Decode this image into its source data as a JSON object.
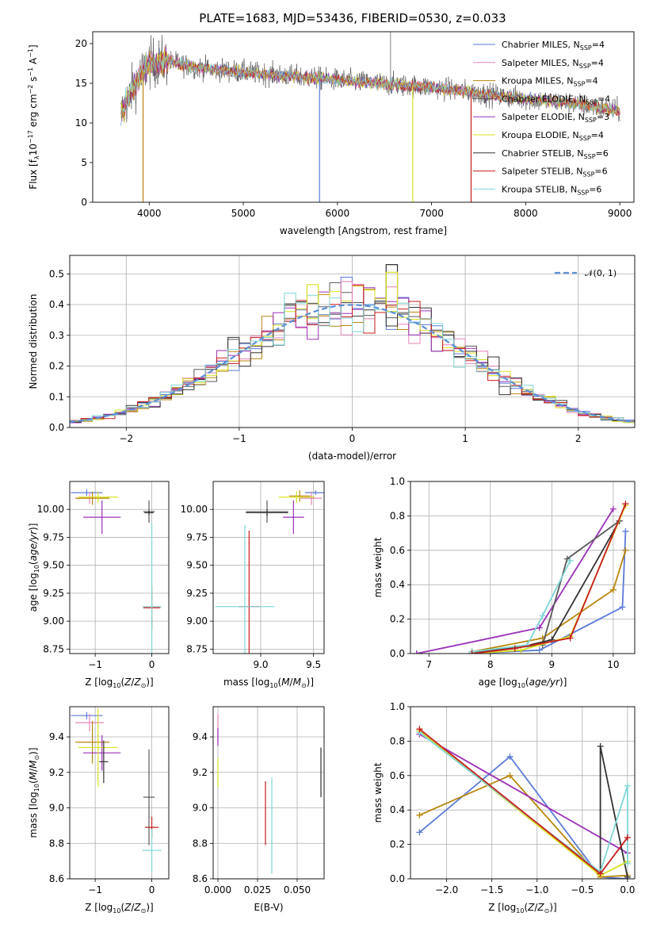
{
  "figure": {
    "title": "PLATE=1683, MJD=53436, FIBERID=0530, z=0.033",
    "series": [
      {
        "name": "Chabrier MILES, N_SSP=4",
        "legend_main": "Chabrier MILES, N",
        "legend_sub": "SSP",
        "legend_tail": "=4",
        "color": "#5b7bd8"
      },
      {
        "name": "Salpeter MILES, N_SSP=4",
        "legend_main": "Salpeter MILES, N",
        "legend_sub": "SSP",
        "legend_tail": "=4",
        "color": "#e384b7"
      },
      {
        "name": "Kroupa MILES, N_SSP=4",
        "legend_main": "Kroupa MILES, N",
        "legend_sub": "SSP",
        "legend_tail": "=4",
        "color": "#b8860b"
      },
      {
        "name": "Chabrier ELODIE, N_SSP=4",
        "legend_main": "Chabrier ELODIE, N",
        "legend_sub": "SSP",
        "legend_tail": "=4",
        "color": "#5a5a5a"
      },
      {
        "name": "Salpeter ELODIE, N_SSP=3",
        "legend_main": "Salpeter ELODIE, N",
        "legend_sub": "SSP",
        "legend_tail": "=3",
        "color": "#9b30b8"
      },
      {
        "name": "Kroupa ELODIE, N_SSP=4",
        "legend_main": "Kroupa ELODIE, N",
        "legend_sub": "SSP",
        "legend_tail": "=4",
        "color": "#d9e021"
      },
      {
        "name": "Chabrier STELIB, N_SSP=6",
        "legend_main": "Chabrier STELIB, N",
        "legend_sub": "SSP",
        "legend_tail": "=6",
        "color": "#333333"
      },
      {
        "name": "Salpeter STELIB, N_SSP=6",
        "legend_main": "Salpeter STELIB, N",
        "legend_sub": "SSP",
        "legend_tail": "=6",
        "color": "#c81d1d"
      },
      {
        "name": "Kroupa STELIB, N_SSP=6",
        "legend_main": "Kroupa STELIB, N",
        "legend_sub": "SSP",
        "legend_tail": "=6",
        "color": "#7fd6d6"
      }
    ]
  },
  "chart_data": [
    {
      "id": "spectrum",
      "type": "line",
      "xlabel": "wavelength [Angstrom, rest frame]",
      "ylabel_main": "Flux [f",
      "ylabel_lambda": "λ",
      "ylabel_rest": "10",
      "ylabel_exp1": "−17",
      "ylabel_unit": " erg cm",
      "ylabel_exp2": "−2",
      "ylabel_s": " s",
      "ylabel_exp3": "−1",
      "ylabel_A": " A",
      "ylabel_exp4": "−1",
      "ylabel_close": "]",
      "xlim": [
        3400,
        9150
      ],
      "ylim": [
        0,
        21.5
      ],
      "xticks": [
        4000,
        5000,
        6000,
        7000,
        8000,
        9000
      ],
      "yticks": [
        0,
        5,
        10,
        15,
        20
      ],
      "grid": false,
      "legend": "upper right",
      "wavelength_range": [
        3700,
        9000
      ],
      "continuum": [
        [
          3700,
          11.0
        ],
        [
          3850,
          15.0
        ],
        [
          4000,
          17.5
        ],
        [
          4200,
          17.8
        ],
        [
          4500,
          17.0
        ],
        [
          5000,
          16.4
        ],
        [
          5500,
          15.9
        ],
        [
          6000,
          15.4
        ],
        [
          6500,
          14.9
        ],
        [
          7000,
          14.5
        ],
        [
          7400,
          13.9
        ],
        [
          8000,
          13.0
        ],
        [
          8500,
          12.5
        ],
        [
          9000,
          11.5
        ]
      ],
      "features": [
        {
          "series_index": 0,
          "x": 5810,
          "y": 0
        },
        {
          "series_index": 7,
          "x": 7420,
          "y": 0
        },
        {
          "series_index": 2,
          "x": 3935,
          "y": 0
        },
        {
          "series_index": 5,
          "x": 6800,
          "y": 0
        }
      ]
    },
    {
      "id": "residuals",
      "type": "histogram",
      "xlabel": "(data-model)/error",
      "ylabel": "Normed distribution",
      "xlim": [
        -2.5,
        2.5
      ],
      "ylim": [
        0,
        0.56
      ],
      "xticks": [
        -2,
        -1,
        0,
        1,
        2
      ],
      "yticks": [
        0.0,
        0.1,
        0.2,
        0.3,
        0.4,
        0.5
      ],
      "grid": true,
      "legend": "upper right",
      "reference_label": "𝒩(0, 1)",
      "reference_color": "#5b8fd9",
      "bin_width": 0.1,
      "bin_start": -2.5,
      "envelope_peak_bins": [
        {
          "x": -0.35,
          "y": 0.465
        },
        {
          "x": -0.05,
          "y": 0.475
        },
        {
          "x": 0.35,
          "y": 0.53
        },
        {
          "x": 0.35,
          "y": 0.505
        }
      ]
    },
    {
      "id": "age_vs_Z",
      "type": "errorbar",
      "xlabel": "Z [log10(Z/Z⊙)]",
      "ylabel": "age  [log10(age/yr)]",
      "xlim": [
        -1.45,
        0.3
      ],
      "ylim": [
        8.71,
        10.25
      ],
      "xticks": [
        -1,
        0
      ],
      "yticks": [
        8.75,
        9.0,
        9.25,
        9.5,
        9.75,
        10.0
      ],
      "grid": true,
      "points": [
        {
          "series_index": 0,
          "x": -1.15,
          "y": 10.15,
          "xerr": 0.28,
          "yerr": 0.03
        },
        {
          "series_index": 1,
          "x": -1.1,
          "y": 10.1,
          "xerr": 0.25,
          "yerr": 0.05
        },
        {
          "series_index": 2,
          "x": -1.05,
          "y": 10.1,
          "xerr": 0.3,
          "yerr": 0.06
        },
        {
          "series_index": 3,
          "x": -0.05,
          "y": 9.98,
          "xerr": 0.1,
          "yerr": 0.1
        },
        {
          "series_index": 4,
          "x": -0.88,
          "y": 9.93,
          "xerr": 0.33,
          "yerr": 0.15
        },
        {
          "series_index": 5,
          "x": -0.95,
          "y": 10.11,
          "xerr": 0.35,
          "yerr": 0.05
        },
        {
          "series_index": 6,
          "x": -0.05,
          "y": 9.97,
          "xerr": 0.08,
          "yerr": 0.02
        },
        {
          "series_index": 7,
          "x": 0.0,
          "y": 9.12,
          "xerr": 0.15,
          "yerr": 0.2
        },
        {
          "series_index": 8,
          "x": 0.0,
          "y": 9.13,
          "xerr": 0.17,
          "yerr": 0.75
        }
      ]
    },
    {
      "id": "age_vs_mass",
      "type": "errorbar",
      "xlabel": "mass [log10(M/M⊙)]",
      "ylabel": "",
      "xlim": [
        8.55,
        9.6
      ],
      "ylim": [
        8.71,
        10.25
      ],
      "xticks": [
        9.0,
        9.5
      ],
      "yticks": [
        8.75,
        9.0,
        9.25,
        9.5,
        9.75,
        10.0
      ],
      "grid": true,
      "points": [
        {
          "series_index": 0,
          "x": 9.52,
          "y": 10.15,
          "xerr": 0.1,
          "yerr": 0.02
        },
        {
          "series_index": 1,
          "x": 9.48,
          "y": 10.1,
          "xerr": 0.1,
          "yerr": 0.06
        },
        {
          "series_index": 2,
          "x": 9.37,
          "y": 10.12,
          "xerr": 0.1,
          "yerr": 0.05
        },
        {
          "series_index": 3,
          "x": 9.06,
          "y": 9.98,
          "xerr": 0.2,
          "yerr": 0.1
        },
        {
          "series_index": 4,
          "x": 9.31,
          "y": 9.93,
          "xerr": 0.1,
          "yerr": 0.15
        },
        {
          "series_index": 5,
          "x": 9.34,
          "y": 10.11,
          "xerr": 0.17,
          "yerr": 0.05
        },
        {
          "series_index": 6,
          "x": 9.06,
          "y": 9.97,
          "xerr": 0.2,
          "yerr": 0.03
        },
        {
          "series_index": 7,
          "x": 8.89,
          "y": 9.13,
          "xerr": 0.1,
          "yerr": 0.68
        },
        {
          "series_index": 8,
          "x": 8.85,
          "y": 9.13,
          "xerr": 0.28,
          "yerr": 0.73
        }
      ]
    },
    {
      "id": "weight_vs_age",
      "type": "line",
      "xlabel": "age  [log10(age/yr)]",
      "ylabel": "mass weight",
      "xlim": [
        6.7,
        10.35
      ],
      "ylim": [
        0,
        1
      ],
      "xticks": [
        7,
        8,
        9,
        10
      ],
      "yticks": [
        0.0,
        0.2,
        0.4,
        0.6,
        0.8,
        1.0
      ],
      "grid": true,
      "series": [
        {
          "series_index": 0,
          "x": [
            7.7,
            8.8,
            10.15,
            10.2
          ],
          "y": [
            0.0,
            0.02,
            0.27,
            0.71
          ]
        },
        {
          "series_index": 2,
          "x": [
            7.7,
            8.85,
            10.0,
            10.2
          ],
          "y": [
            0.01,
            0.09,
            0.37,
            0.6
          ]
        },
        {
          "series_index": 4,
          "x": [
            6.8,
            8.8,
            10.0
          ],
          "y": [
            0.0,
            0.15,
            0.84
          ]
        },
        {
          "series_index": 3,
          "x": [
            7.7,
            8.85,
            9.25,
            10.1
          ],
          "y": [
            0.01,
            0.05,
            0.55,
            0.77
          ]
        },
        {
          "series_index": 6,
          "x": [
            7.7,
            8.4,
            9.0,
            10.1
          ],
          "y": [
            0.01,
            0.03,
            0.08,
            0.77
          ]
        },
        {
          "series_index": 5,
          "x": [
            7.7,
            8.5,
            9.3,
            10.2
          ],
          "y": [
            0.0,
            0.02,
            0.1,
            0.86
          ]
        },
        {
          "series_index": 8,
          "x": [
            7.7,
            8.6,
            8.85,
            9.3
          ],
          "y": [
            0.01,
            0.05,
            0.22,
            0.54
          ]
        },
        {
          "series_index": 7,
          "x": [
            7.7,
            8.4,
            9.3,
            10.2
          ],
          "y": [
            0.0,
            0.03,
            0.09,
            0.87
          ]
        }
      ]
    },
    {
      "id": "mass_vs_Z",
      "type": "errorbar",
      "xlabel": "Z [log10(Z/Z⊙)]",
      "ylabel": "mass [log10(M/M⊙)]",
      "xlim": [
        -1.45,
        0.3
      ],
      "ylim": [
        8.6,
        9.57
      ],
      "xticks": [
        -1,
        0
      ],
      "yticks": [
        8.6,
        8.8,
        9.0,
        9.2,
        9.4
      ],
      "grid": true,
      "points": [
        {
          "series_index": 0,
          "x": -1.15,
          "y": 9.52,
          "xerr": 0.28,
          "yerr": 0.02
        },
        {
          "series_index": 1,
          "x": -1.1,
          "y": 9.48,
          "xerr": 0.25,
          "yerr": 0.05
        },
        {
          "series_index": 2,
          "x": -1.05,
          "y": 9.37,
          "xerr": 0.3,
          "yerr": 0.12
        },
        {
          "series_index": 3,
          "x": -0.05,
          "y": 9.06,
          "xerr": 0.1,
          "yerr": 0.27
        },
        {
          "series_index": 4,
          "x": -0.88,
          "y": 9.31,
          "xerr": 0.33,
          "yerr": 0.1
        },
        {
          "series_index": 5,
          "x": -0.95,
          "y": 9.34,
          "xerr": 0.35,
          "yerr": 0.22
        },
        {
          "series_index": 6,
          "x": -0.85,
          "y": 9.26,
          "xerr": 0.08,
          "yerr": 0.12
        },
        {
          "series_index": 7,
          "x": 0.0,
          "y": 8.89,
          "xerr": 0.12,
          "yerr": 0.06
        },
        {
          "series_index": 8,
          "x": 0.0,
          "y": 8.76,
          "xerr": 0.17,
          "yerr": 0.12
        }
      ]
    },
    {
      "id": "mass_vs_ebv",
      "type": "errorbar",
      "xlabel": "E(B-V)",
      "ylabel": "",
      "xlim": [
        -0.003,
        0.067
      ],
      "ylim": [
        8.6,
        9.57
      ],
      "xticks": [
        0.0,
        0.025,
        0.05
      ],
      "yticks": [
        8.6,
        8.8,
        9.0,
        9.2,
        9.4
      ],
      "grid": true,
      "points": [
        {
          "series_index": 1,
          "x": 0.0,
          "y": 9.45,
          "xerr": 0,
          "yerr": 0.08
        },
        {
          "series_index": 4,
          "x": 0.0,
          "y": 9.4,
          "xerr": 0,
          "yerr": 0.05
        },
        {
          "series_index": 5,
          "x": 0.0,
          "y": 9.2,
          "xerr": 0,
          "yerr": 0.08
        },
        {
          "series_index": 7,
          "x": 0.03,
          "y": 8.97,
          "xerr": 0,
          "yerr": 0.18
        },
        {
          "series_index": 8,
          "x": 0.034,
          "y": 8.9,
          "xerr": 0,
          "yerr": 0.27
        },
        {
          "series_index": 6,
          "x": 0.065,
          "y": 9.2,
          "xerr": 0,
          "yerr": 0.14
        }
      ]
    },
    {
      "id": "weight_vs_Z",
      "type": "line",
      "xlabel": "Z [log10(Z/Z⊙)]",
      "ylabel": "mass weight",
      "xlim": [
        -2.4,
        0.08
      ],
      "ylim": [
        0,
        1
      ],
      "xticks": [
        -2.0,
        -1.5,
        -1.0,
        -0.5,
        0.0
      ],
      "yticks": [
        0.0,
        0.2,
        0.4,
        0.6,
        0.8,
        1.0
      ],
      "grid": true,
      "series": [
        {
          "series_index": 0,
          "x": [
            -2.3,
            -1.3,
            -0.3,
            0.0
          ],
          "y": [
            0.27,
            0.71,
            0.01,
            0.0
          ]
        },
        {
          "series_index": 2,
          "x": [
            -2.3,
            -1.3,
            -0.3,
            0.0
          ],
          "y": [
            0.37,
            0.6,
            0.01,
            0.02
          ]
        },
        {
          "series_index": 4,
          "x": [
            -2.3,
            0.0
          ],
          "y": [
            0.84,
            0.15
          ]
        },
        {
          "series_index": 6,
          "x": [
            -2.3,
            -0.3,
            -0.3,
            0.0
          ],
          "y": [
            0.86,
            0.03,
            0.77,
            0.01
          ]
        },
        {
          "series_index": 5,
          "x": [
            -2.3,
            -0.3,
            0.0
          ],
          "y": [
            0.86,
            0.02,
            0.1
          ]
        },
        {
          "series_index": 8,
          "x": [
            -2.3,
            -0.3,
            0.0,
            0.0
          ],
          "y": [
            0.85,
            0.04,
            0.54,
            0.09
          ]
        },
        {
          "series_index": 7,
          "x": [
            -2.3,
            -0.3,
            0.0
          ],
          "y": [
            0.87,
            0.03,
            0.24
          ]
        }
      ]
    }
  ]
}
